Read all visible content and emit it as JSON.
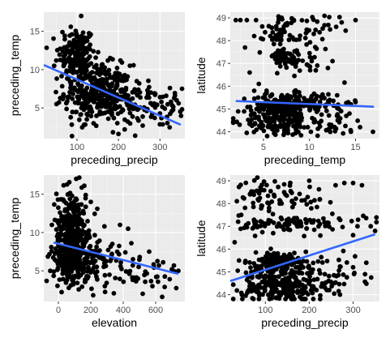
{
  "chart_data": [
    {
      "type": "scatter",
      "xlabel": "preceding_precip",
      "ylabel": "preceding_temp",
      "xlim": [
        20,
        360
      ],
      "ylim": [
        1,
        17.5
      ],
      "xticks": [
        100,
        200,
        300
      ],
      "yticks": [
        5,
        10,
        15
      ],
      "grid": true,
      "point_color": "#000000",
      "trend_line": {
        "x": [
          20,
          350
        ],
        "y": [
          10.6,
          2.8
        ],
        "color": "#3366ff"
      },
      "clusters": [
        {
          "cx": 100,
          "cy": 12.0,
          "sx": 22,
          "sy": 1.8,
          "n": 160
        },
        {
          "cx": 150,
          "cy": 7.0,
          "sx": 40,
          "sy": 1.8,
          "n": 330
        },
        {
          "cx": 240,
          "cy": 5.5,
          "sx": 45,
          "sy": 1.5,
          "n": 90
        },
        {
          "cx": 320,
          "cy": 5.0,
          "sx": 20,
          "sy": 1.3,
          "n": 20
        }
      ],
      "points": [
        [
          110,
          17
        ],
        [
          85,
          15.6
        ],
        [
          65,
          14.9
        ],
        [
          130,
          14.7
        ],
        [
          180,
          11.5
        ],
        [
          250,
          8.2
        ],
        [
          270,
          7.3
        ],
        [
          300,
          6.4
        ],
        [
          340,
          6.0
        ],
        [
          330,
          5.3
        ],
        [
          200,
          1.6
        ],
        [
          215,
          2.2
        ],
        [
          140,
          3.0
        ],
        [
          45,
          10.5
        ],
        [
          50,
          11.2
        ],
        [
          345,
          5.6
        ]
      ]
    },
    {
      "type": "scatter",
      "xlabel": "preceding_temp",
      "ylabel": "latitude",
      "xlim": [
        1.4,
        17.6
      ],
      "ylim": [
        43.7,
        49.25
      ],
      "xticks": [
        5,
        10,
        15
      ],
      "yticks": [
        44,
        45,
        46,
        47,
        48,
        49
      ],
      "grid": true,
      "point_color": "#000000",
      "trend_line": {
        "x": [
          2,
          17
        ],
        "y": [
          45.35,
          45.1
        ],
        "color": "#3366ff"
      },
      "clusters": [
        {
          "cx": 7.0,
          "cy": 48.4,
          "sx": 0.9,
          "sy": 0.35,
          "n": 45
        },
        {
          "cx": 10.0,
          "cy": 48.4,
          "sx": 1.6,
          "sy": 0.4,
          "n": 35
        },
        {
          "cx": 7.0,
          "cy": 47.2,
          "sx": 1.0,
          "sy": 0.25,
          "n": 40
        },
        {
          "cx": 9.5,
          "cy": 47.1,
          "sx": 1.7,
          "sy": 0.25,
          "n": 25
        },
        {
          "cx": 7.0,
          "cy": 45.2,
          "sx": 1.6,
          "sy": 0.25,
          "n": 130
        },
        {
          "cx": 10.5,
          "cy": 45.3,
          "sx": 2.0,
          "sy": 0.25,
          "n": 70
        },
        {
          "cx": 6.5,
          "cy": 44.5,
          "sx": 1.8,
          "sy": 0.35,
          "n": 170
        },
        {
          "cx": 12.0,
          "cy": 44.4,
          "sx": 2.0,
          "sy": 0.3,
          "n": 40
        }
      ],
      "points": [
        [
          2.0,
          48.9
        ],
        [
          2.5,
          48.9
        ],
        [
          3.2,
          48.9
        ],
        [
          4.2,
          48.9
        ],
        [
          3.0,
          47.7
        ],
        [
          4.0,
          48.2
        ],
        [
          3.5,
          46.6
        ],
        [
          4.0,
          45.8
        ],
        [
          13.5,
          48.8
        ],
        [
          15.0,
          48.9
        ],
        [
          14.5,
          45.2
        ],
        [
          15.0,
          45.3
        ],
        [
          16.9,
          44.0
        ],
        [
          15.5,
          44.2
        ],
        [
          14.5,
          44.0
        ],
        [
          13.0,
          45.6
        ],
        [
          12.5,
          47.1
        ],
        [
          4.5,
          46.1
        ],
        [
          12.0,
          46.8
        ]
      ]
    },
    {
      "type": "scatter",
      "xlabel": "elevation",
      "ylabel": "preceding_temp",
      "xlim": [
        -90,
        780
      ],
      "ylim": [
        1,
        17.5
      ],
      "xticks": [
        0,
        200,
        400,
        600
      ],
      "yticks": [
        5,
        10,
        15
      ],
      "grid": true,
      "point_color": "#000000",
      "trend_line": {
        "x": [
          -30,
          740
        ],
        "y": [
          8.7,
          4.6
        ],
        "color": "#3366ff"
      },
      "clusters": [
        {
          "cx": 80,
          "cy": 11.5,
          "sx": 45,
          "sy": 2.2,
          "n": 170
        },
        {
          "cx": 90,
          "cy": 7.0,
          "sx": 60,
          "sy": 1.8,
          "n": 340
        },
        {
          "cx": 240,
          "cy": 6.5,
          "sx": 70,
          "sy": 1.8,
          "n": 70
        },
        {
          "cx": 480,
          "cy": 5.0,
          "sx": 70,
          "sy": 1.4,
          "n": 25
        },
        {
          "cx": 640,
          "cy": 4.5,
          "sx": 50,
          "sy": 1.2,
          "n": 12
        }
      ],
      "points": [
        [
          110,
          17
        ],
        [
          160,
          16.1
        ],
        [
          60,
          15.0
        ],
        [
          30,
          14.3
        ],
        [
          200,
          14.0
        ],
        [
          240,
          13.1
        ],
        [
          380,
          11.0
        ],
        [
          430,
          10.5
        ],
        [
          450,
          8.6
        ],
        [
          560,
          7.5
        ],
        [
          620,
          5.7
        ],
        [
          700,
          5.2
        ],
        [
          740,
          5.0
        ],
        [
          580,
          3.0
        ],
        [
          640,
          1.6
        ],
        [
          520,
          2.0
        ],
        [
          -40,
          11.0
        ],
        [
          -50,
          5.0
        ]
      ]
    },
    {
      "type": "scatter",
      "xlabel": "preceding_precip",
      "ylabel": "latitude",
      "xlim": [
        20,
        360
      ],
      "ylim": [
        43.7,
        49.25
      ],
      "xticks": [
        100,
        200,
        300
      ],
      "yticks": [
        44,
        45,
        46,
        47,
        48,
        49
      ],
      "grid": true,
      "point_color": "#000000",
      "trend_line": {
        "x": [
          20,
          350
        ],
        "y": [
          44.6,
          46.65
        ],
        "color": "#3366ff"
      },
      "clusters": [
        {
          "cx": 80,
          "cy": 48.4,
          "sx": 20,
          "sy": 0.35,
          "n": 35
        },
        {
          "cx": 160,
          "cy": 48.3,
          "sx": 40,
          "sy": 0.4,
          "n": 40
        },
        {
          "cx": 130,
          "cy": 47.1,
          "sx": 45,
          "sy": 0.2,
          "n": 70
        },
        {
          "cx": 250,
          "cy": 47.1,
          "sx": 40,
          "sy": 0.25,
          "n": 30
        },
        {
          "cx": 130,
          "cy": 45.3,
          "sx": 40,
          "sy": 0.3,
          "n": 170
        },
        {
          "cx": 140,
          "cy": 44.3,
          "sx": 45,
          "sy": 0.3,
          "n": 200
        },
        {
          "cx": 250,
          "cy": 44.8,
          "sx": 40,
          "sy": 0.4,
          "n": 40
        }
      ],
      "points": [
        [
          200,
          49.0
        ],
        [
          260,
          48.8
        ],
        [
          280,
          48.9
        ],
        [
          300,
          48.9
        ],
        [
          320,
          48.8
        ],
        [
          35,
          48.1
        ],
        [
          45,
          47.5
        ],
        [
          30,
          46.3
        ],
        [
          40,
          45.5
        ],
        [
          340,
          47.0
        ],
        [
          350,
          46.8
        ],
        [
          330,
          45.4
        ],
        [
          300,
          45.2
        ],
        [
          270,
          44.0
        ],
        [
          240,
          44.2
        ],
        [
          310,
          47.0
        ]
      ]
    }
  ]
}
